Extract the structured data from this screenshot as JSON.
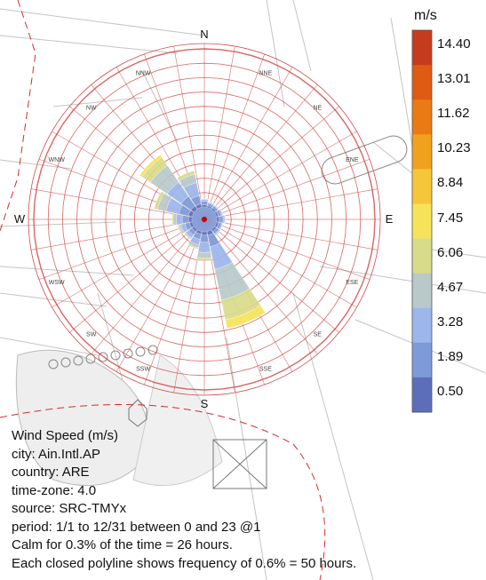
{
  "chart_data": {
    "type": "wind-rose",
    "title": "Wind Speed (m/s)",
    "unit": "m/s",
    "directions": [
      "N",
      "NNE",
      "NE",
      "ENE",
      "E",
      "ESE",
      "SE",
      "SSE",
      "S",
      "SSW",
      "SW",
      "WSW",
      "W",
      "WNW",
      "NW",
      "NNW"
    ],
    "major_directions": [
      "N",
      "E",
      "S",
      "W"
    ],
    "legend_ticks": [
      "14.40",
      "13.01",
      "11.62",
      "10.23",
      "8.84",
      "7.45",
      "6.06",
      "4.67",
      "3.28",
      "1.89",
      "0.50"
    ],
    "legend_colors": [
      "#c43c1c",
      "#df5a12",
      "#ea7a14",
      "#f1a21c",
      "#f6c63a",
      "#f7e35a",
      "#d8dc8a",
      "#b9c9c9",
      "#9cb7ec",
      "#7e9ad8",
      "#5d6eb9"
    ],
    "ring_frequency_percent": 0.6,
    "ring_hours": 50,
    "calm_percent": 0.3,
    "calm_hours": 26,
    "frequency_rings": 11,
    "petals": [
      {
        "dir": "N",
        "hours": [
          8,
          12,
          6,
          2
        ]
      },
      {
        "dir": "NNE",
        "hours": [
          6,
          8,
          4,
          1
        ]
      },
      {
        "dir": "NE",
        "hours": [
          6,
          8,
          3,
          1
        ]
      },
      {
        "dir": "ENE",
        "hours": [
          7,
          10,
          5,
          2
        ]
      },
      {
        "dir": "E",
        "hours": [
          9,
          13,
          6,
          2
        ]
      },
      {
        "dir": "ESE",
        "hours": [
          8,
          10,
          4,
          1
        ]
      },
      {
        "dir": "SE",
        "hours": [
          8,
          10,
          5,
          2
        ]
      },
      {
        "dir": "SSE",
        "hours": [
          14,
          40,
          80,
          110,
          70,
          30
        ]
      },
      {
        "dir": "S",
        "hours": [
          12,
          25,
          35,
          20,
          8
        ]
      },
      {
        "dir": "SSW",
        "hours": [
          10,
          18,
          20,
          10,
          4
        ]
      },
      {
        "dir": "SW",
        "hours": [
          9,
          14,
          12,
          5,
          2
        ]
      },
      {
        "dir": "WSW",
        "hours": [
          10,
          16,
          14,
          8,
          3
        ]
      },
      {
        "dir": "W",
        "hours": [
          12,
          22,
          20,
          12,
          4
        ]
      },
      {
        "dir": "WNW",
        "hours": [
          14,
          34,
          45,
          30,
          12
        ]
      },
      {
        "dir": "NW",
        "hours": [
          14,
          40,
          60,
          70,
          35,
          10
        ]
      },
      {
        "dir": "NNW",
        "hours": [
          12,
          30,
          45,
          30,
          12
        ]
      }
    ]
  },
  "info": {
    "lines": [
      "Wind Speed (m/s)",
      "city: Ain.Intl.AP",
      "country: ARE",
      "time-zone: 4.0",
      "source: SRC-TMYx",
      "period: 1/1 to 12/31 between 0 and 23 @1",
      "Calm for 0.3% of the time = 26 hours.",
      "Each closed polyline shows frequency of 0.6% = 50 hours."
    ]
  }
}
